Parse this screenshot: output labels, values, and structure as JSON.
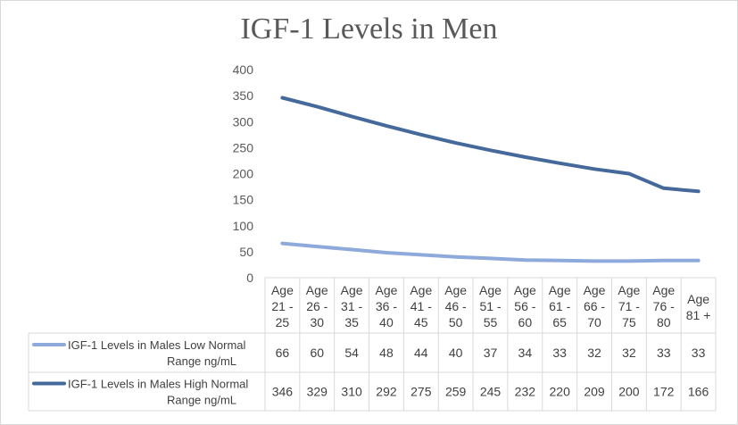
{
  "chart_data": {
    "type": "line",
    "title": "IGF-1 Levels in Men",
    "categories": [
      [
        "Age",
        "21 -",
        "25"
      ],
      [
        "Age",
        "26 -",
        "30"
      ],
      [
        "Age",
        "31 -",
        "35"
      ],
      [
        "Age",
        "36 -",
        "40"
      ],
      [
        "Age",
        "41 -",
        "45"
      ],
      [
        "Age",
        "46 -",
        "50"
      ],
      [
        "Age",
        "51 -",
        "55"
      ],
      [
        "Age",
        "56 -",
        "60"
      ],
      [
        "Age",
        "61 -",
        "65"
      ],
      [
        "Age",
        "66 -",
        "70"
      ],
      [
        "Age",
        "71 -",
        "75"
      ],
      [
        "Age",
        "76 -",
        "80"
      ],
      [
        "Age",
        "81 +"
      ]
    ],
    "ylim": [
      0,
      400
    ],
    "yticks": [
      0,
      50,
      100,
      150,
      200,
      250,
      300,
      350,
      400
    ],
    "grid": false,
    "legend": "data-table",
    "series": [
      {
        "name": [
          "IGF-1 Levels in Males Low Normal",
          "Range ng/mL"
        ],
        "color": "#8eaadb",
        "values": [
          66,
          60,
          54,
          48,
          44,
          40,
          37,
          34,
          33,
          32,
          32,
          33,
          33
        ]
      },
      {
        "name": [
          "IGF-1 Levels in Males High Normal",
          "Range ng/mL"
        ],
        "color": "#44699a",
        "values": [
          346,
          329,
          310,
          292,
          275,
          259,
          245,
          232,
          220,
          209,
          200,
          172,
          166
        ]
      }
    ]
  }
}
